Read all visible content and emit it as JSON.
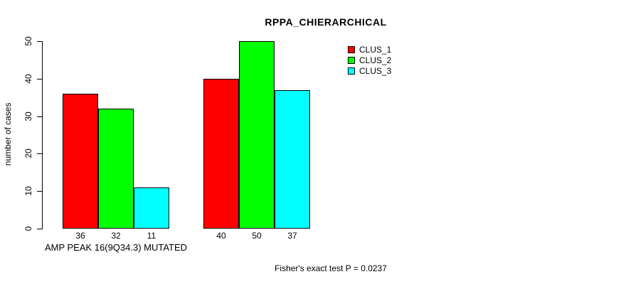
{
  "title": "RPPA_CHIERARCHICAL",
  "footnote": "Fisher's exact test P = 0.0237",
  "chart_data": {
    "type": "bar",
    "title": "RPPA_CHIERARCHICAL",
    "ylabel": "number of cases",
    "xlabel": "",
    "ylim": [
      0,
      50
    ],
    "yticks": [
      0,
      10,
      20,
      30,
      40,
      50
    ],
    "grid": false,
    "legend_position": "top-right",
    "categories": [
      "AMP PEAK 16(9Q34.3) MUTATED",
      ""
    ],
    "series": [
      {
        "name": "CLUS_1",
        "color": "#ff0000",
        "values": [
          36,
          40
        ]
      },
      {
        "name": "CLUS_2",
        "color": "#00ff00",
        "values": [
          32,
          50
        ]
      },
      {
        "name": "CLUS_3",
        "color": "#00ffff",
        "values": [
          11,
          37
        ]
      }
    ],
    "bar_value_labels": [
      [
        36,
        32,
        11
      ],
      [
        40,
        50,
        37
      ]
    ],
    "annotation": "Fisher's exact test P = 0.0237"
  },
  "colors": {
    "axis": "#000000",
    "text": "#000000",
    "background": "#ffffff"
  }
}
